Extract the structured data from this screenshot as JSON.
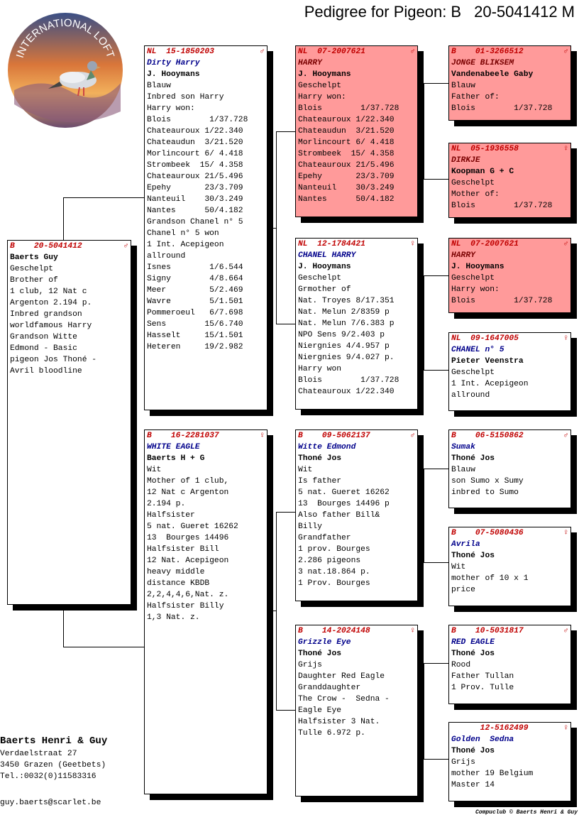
{
  "title": {
    "label": "Pedigree for Pigeon: B",
    "ring": "20-5041412 M"
  },
  "logo_text": "INTERNATIONAL LOFT",
  "colors": {
    "ring": "#c00000",
    "name": "#00008b",
    "highlight": "#ff9a9a"
  },
  "pigeons": {
    "subject": {
      "ring": "B    20-5041412",
      "sex": "♂",
      "name": "",
      "owner": "Baerts Guy",
      "lines": [
        "Geschelpt",
        "Brother of",
        "1 club, 12 Nat c",
        "Argenton 2.194 p.",
        "Inbred grandson",
        "worldfamous Harry",
        "Grandson Witte",
        "Edmond - Basic",
        "pigeon Jos Thoné -",
        "Avril bloodline"
      ]
    },
    "sire": {
      "ring": "NL  15-1850203",
      "sex": "♂",
      "name": "Dirty Harry",
      "owner": "J. Hooymans",
      "lines": [
        "Blauw",
        "Inbred son Harry",
        "Harry won:",
        "Blois        1/37.728",
        "Chateauroux 1/22.340",
        "Chateaudun  3/21.520",
        "Morlincourt 6/ 4.418",
        "Strombeek  15/ 4.358",
        "Chateauroux 21/5.496",
        "Epehy       23/3.709",
        "Nanteuil    30/3.249",
        "Nantes      50/4.182",
        "Grandson Chanel n° 5",
        "Chanel n° 5 won",
        "1 Int. Acepigeon",
        "allround",
        "Isnes        1/6.544",
        "Signy        4/8.664",
        "Meer         5/2.469",
        "Wavre        5/1.501",
        "Pommeroeul   6/7.698",
        "Sens        15/6.740",
        "Hasselt     15/1.501",
        "Heteren     19/2.982"
      ]
    },
    "dam": {
      "ring": "B    16-2281037",
      "sex": "♀",
      "name": "WHITE EAGLE",
      "owner": "Baerts H + G",
      "lines": [
        "Wit",
        "Mother of 1 club,",
        "12 Nat c Argenton",
        "2.194 p.",
        "Halfsister",
        "5 nat. Gueret 16262",
        "13  Bourges 14496",
        "Halfsister Bill",
        "12 Nat. Acepigeon",
        "heavy middle",
        "distance KBDB",
        "2,2,4,4,6,Nat. z.",
        "Halfsister Billy",
        "1,3 Nat. z."
      ]
    },
    "ss": {
      "ring": "NL  07-2007621",
      "sex": "♂",
      "name": "HARRY",
      "owner": "J. Hooymans",
      "lines": [
        "Geschelpt",
        "Harry won:",
        "Blois        1/37.728",
        "Chateauroux 1/22.340",
        "Chateaudun  3/21.520",
        "Morlincourt 6/ 4.418",
        "Strombeek  15/ 4.358",
        "Chateauroux 21/5.496",
        "Epehy       23/3.709",
        "Nanteuil    30/3.249",
        "Nantes      50/4.182"
      ]
    },
    "sd": {
      "ring": "NL  12-1784421",
      "sex": "♀",
      "name": "CHANEL HARRY",
      "owner": "J. Hooymans",
      "lines": [
        "Geschelpt",
        "Grmother of",
        "Nat. Troyes 8/17.351",
        "Nat. Melun 2/8359 p",
        "Nat. Melun 7/6.383 p",
        "NPO Sens 9/2.403 p",
        "Niergnies 4/4.957 p",
        "Niergnies 9/4.027 p.",
        "Harry won",
        "Blois        1/37.728",
        "Chateauroux 1/22.340"
      ]
    },
    "ds": {
      "ring": "B    09-5062137",
      "sex": "♂",
      "name": "Witte Edmond",
      "owner": "Thoné Jos",
      "lines": [
        "Wit",
        "Is father",
        "5 nat. Gueret 16262",
        "13  Bourges 14496 p",
        "Also father Bill&",
        "Billy",
        "Grandfather",
        "1 prov. Bourges",
        "2.286 pigeons",
        "3 nat.18.864 p.",
        "1 Prov. Bourges"
      ]
    },
    "dd": {
      "ring": "B    14-2024148",
      "sex": "♀",
      "name": "Grizzle Eye",
      "owner": "Thoné Jos",
      "lines": [
        "Grijs",
        "Daughter Red Eagle",
        "Granddaughter",
        "The Crow -  Sedna -",
        "Eagle Eye",
        "Halfsister 3 Nat.",
        "Tulle 6.972 p."
      ]
    },
    "sss": {
      "ring": "B    01-3266512",
      "sex": "♂",
      "name": "JONGE BLIKSEM",
      "owner": "Vandenabeele Gaby",
      "lines": [
        "Blauw",
        "Father of:",
        "Blois        1/37.728"
      ]
    },
    "ssd": {
      "ring": "NL  05-1936558",
      "sex": "♀",
      "name": "DIRKJE",
      "owner": "Koopman G + C",
      "lines": [
        "Geschelpt",
        "Mother of:",
        "Blois        1/37.728"
      ]
    },
    "sds": {
      "ring": "NL  07-2007621",
      "sex": "♂",
      "name": "HARRY",
      "owner": "J. Hooymans",
      "lines": [
        "Geschelpt",
        "Harry won:",
        "Blois        1/37.728"
      ]
    },
    "sdd": {
      "ring": "NL  09-1647005",
      "sex": "♀",
      "name": "CHANEL n° 5",
      "owner": "Pieter Veenstra",
      "lines": [
        "Geschelpt",
        "1 Int. Acepigeon",
        "allround"
      ]
    },
    "dss": {
      "ring": "B    06-5150862",
      "sex": "♂",
      "name": "Sumak",
      "owner": "Thoné Jos",
      "lines": [
        "Blauw",
        "son Sumo x Sumy",
        "inbred to Sumo"
      ]
    },
    "dsd": {
      "ring": "B    07-5080436",
      "sex": "♀",
      "name": "Avrila",
      "owner": "Thoné Jos",
      "lines": [
        "Wit",
        "mother of 10 x 1",
        "price"
      ]
    },
    "dds": {
      "ring": "B    10-5031817",
      "sex": "♂",
      "name": "RED EAGLE",
      "owner": "Thoné Jos",
      "lines": [
        "Rood",
        "Father Tullan",
        "1 Prov. Tulle"
      ]
    },
    "ddd": {
      "ring": "      12-5162499",
      "sex": "♀",
      "name": "Golden  Sedna",
      "owner": "Thoné Jos",
      "lines": [
        "Grijs",
        "mother 19 Belgium",
        "Master 14"
      ]
    }
  },
  "breeder": {
    "name": "Baerts Henri & Guy",
    "street": "Verdaelstraat 27",
    "city": "3450  Grazen (Geetbets)",
    "tel": "Tel.:0032(0)11583316",
    "email": "guy.baerts@scarlet.be"
  },
  "footer": "Compuclub © Baerts Henri & Guy"
}
